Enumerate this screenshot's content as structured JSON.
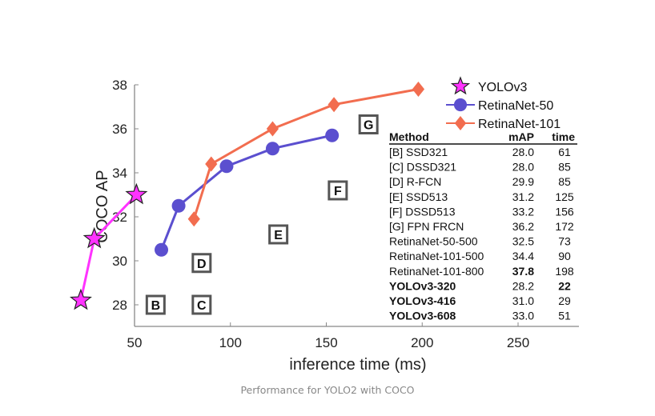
{
  "chart_data": {
    "type": "line",
    "title": "",
    "xlabel": "inference time (ms)",
    "ylabel": "COCO AP",
    "xlim": [
      50,
      280
    ],
    "ylim": [
      27,
      38
    ],
    "xticks": [
      50,
      100,
      150,
      200,
      250
    ],
    "yticks": [
      28,
      30,
      32,
      34,
      36,
      38
    ],
    "grid": false,
    "legend_position": "top-right",
    "series": [
      {
        "name": "YOLOv3",
        "color": "#ff33ff",
        "marker": "star",
        "x": [
          22,
          29,
          51
        ],
        "y": [
          28.2,
          31.0,
          33.0
        ]
      },
      {
        "name": "RetinaNet-50",
        "color": "#5b4fcf",
        "marker": "circle",
        "x": [
          64,
          73,
          98,
          122,
          153
        ],
        "y": [
          30.5,
          32.5,
          34.3,
          35.1,
          35.7
        ]
      },
      {
        "name": "RetinaNet-101",
        "color": "#f26d4f",
        "marker": "diamond",
        "x": [
          81,
          90,
          122,
          154,
          198
        ],
        "y": [
          31.9,
          34.4,
          36.0,
          37.1,
          37.8
        ]
      }
    ],
    "annotations": [
      {
        "label": "B",
        "x": 61,
        "y": 28.0
      },
      {
        "label": "C",
        "x": 85,
        "y": 28.0
      },
      {
        "label": "D",
        "x": 85,
        "y": 29.9
      },
      {
        "label": "E",
        "x": 125,
        "y": 31.2
      },
      {
        "label": "F",
        "x": 156,
        "y": 33.2
      },
      {
        "label": "G",
        "x": 172,
        "y": 36.2
      }
    ],
    "table": {
      "headers": [
        "Method",
        "mAP",
        "time"
      ],
      "rows": [
        {
          "method": "[B] SSD321",
          "map": "28.0",
          "time": "61",
          "bold_method": false,
          "bold_map": false,
          "bold_time": false
        },
        {
          "method": "[C] DSSD321",
          "map": "28.0",
          "time": "85",
          "bold_method": false,
          "bold_map": false,
          "bold_time": false
        },
        {
          "method": "[D] R-FCN",
          "map": "29.9",
          "time": "85",
          "bold_method": false,
          "bold_map": false,
          "bold_time": false
        },
        {
          "method": "[E] SSD513",
          "map": "31.2",
          "time": "125",
          "bold_method": false,
          "bold_map": false,
          "bold_time": false
        },
        {
          "method": "[F] DSSD513",
          "map": "33.2",
          "time": "156",
          "bold_method": false,
          "bold_map": false,
          "bold_time": false
        },
        {
          "method": "[G] FPN FRCN",
          "map": "36.2",
          "time": "172",
          "bold_method": false,
          "bold_map": false,
          "bold_time": false
        },
        {
          "method": "RetinaNet-50-500",
          "map": "32.5",
          "time": "73",
          "bold_method": false,
          "bold_map": false,
          "bold_time": false
        },
        {
          "method": "RetinaNet-101-500",
          "map": "34.4",
          "time": "90",
          "bold_method": false,
          "bold_map": false,
          "bold_time": false
        },
        {
          "method": "RetinaNet-101-800",
          "map": "37.8",
          "time": "198",
          "bold_method": false,
          "bold_map": true,
          "bold_time": false
        },
        {
          "method": "YOLOv3-320",
          "map": "28.2",
          "time": "22",
          "bold_method": true,
          "bold_map": false,
          "bold_time": true
        },
        {
          "method": "YOLOv3-416",
          "map": "31.0",
          "time": "29",
          "bold_method": true,
          "bold_map": false,
          "bold_time": false
        },
        {
          "method": "YOLOv3-608",
          "map": "33.0",
          "time": "51",
          "bold_method": true,
          "bold_map": false,
          "bold_time": false
        }
      ]
    }
  },
  "caption": "Performance for YOLO2 with COCO"
}
